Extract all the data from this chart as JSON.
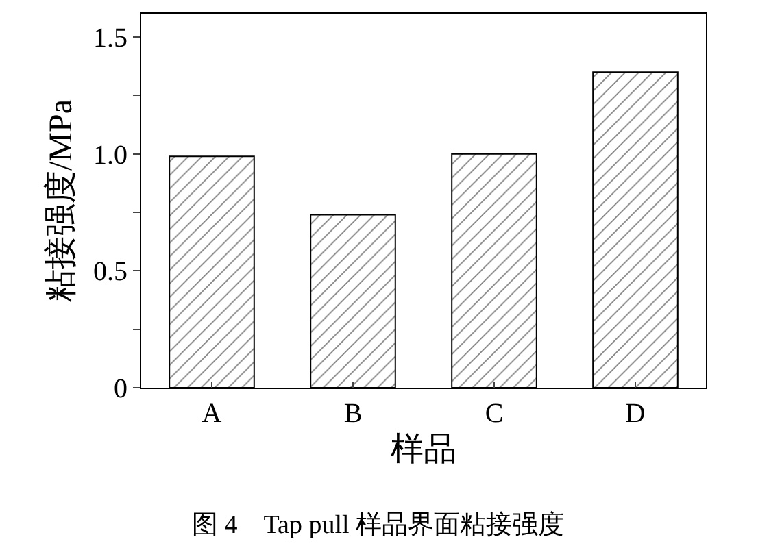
{
  "chart_data": {
    "type": "bar",
    "categories": [
      "A",
      "B",
      "C",
      "D"
    ],
    "values": [
      0.99,
      0.74,
      1.0,
      1.35
    ],
    "color": "#000000",
    "xlabel": "样品",
    "ylabel": "粘接强度/MPa",
    "ylim": [
      0,
      1.6
    ],
    "yticks": [
      0,
      {
        "value": 0.25,
        "label": null
      },
      {
        "value": 0.5,
        "label": "0.5"
      },
      {
        "value": 0.75,
        "label": null
      },
      {
        "value": 1.0,
        "label": "1.0"
      },
      {
        "value": 1.25,
        "label": null
      },
      1.5
    ],
    "annotations": [
      "图 4　Tap pull 样品界面粘接强度"
    ]
  }
}
